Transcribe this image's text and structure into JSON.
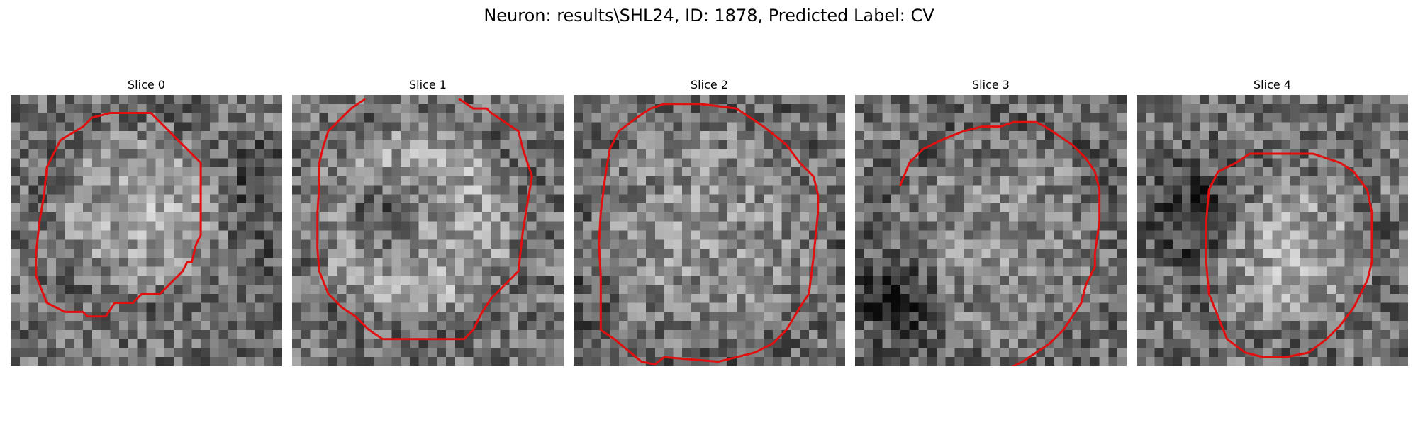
{
  "figure": {
    "title": "Neuron: results\\SHL24, ID: 1878, Predicted Label: CV",
    "colors": {
      "contour": "#e01010",
      "background": "#ffffff"
    },
    "colormap": "gray",
    "panels": [
      {
        "title": "Slice 0",
        "image": "noisy-grayscale-neuron-patch",
        "contour": [
          [
            13.5,
            2
          ],
          [
            0,
            2
          ],
          [
            -2,
            2
          ],
          [
            -4,
            2
          ],
          [
            -6,
            2
          ],
          [
            -8,
            2
          ],
          [
            -10,
            2
          ],
          [
            -13,
            -2
          ],
          [
            -15,
            -2
          ],
          [
            -20,
            -7
          ],
          [
            -20,
            -10
          ],
          [
            -23,
            -13
          ],
          [
            -26,
            -13
          ],
          [
            -26,
            -21
          ],
          [
            -27,
            -21
          ],
          [
            -27,
            -28
          ],
          [
            -26,
            -28
          ],
          [
            -26,
            -30
          ],
          [
            -26,
            -32
          ],
          [
            -25,
            -33
          ],
          [
            -24,
            -33
          ],
          [
            -22,
            -35
          ],
          [
            -18,
            -35
          ],
          [
            -13,
            -31
          ],
          [
            -11,
            -29
          ],
          [
            -9,
            -29
          ],
          [
            -7,
            -27
          ],
          [
            -1,
            -27
          ],
          [
            4,
            -24
          ],
          [
            6,
            -22
          ],
          [
            8,
            -22
          ],
          [
            10,
            -20
          ],
          [
            12,
            -15
          ],
          [
            12,
            -13
          ],
          [
            13.5,
            -11
          ]
        ]
      },
      {
        "title": "Slice 1",
        "image": "noisy-grayscale-neuron-patch",
        "contour": []
      },
      {
        "title": "Slice 2",
        "image": "noisy-grayscale-neuron-patch",
        "contour": []
      },
      {
        "title": "Slice 3",
        "image": "noisy-grayscale-neuron-patch",
        "contour": []
      },
      {
        "title": "Slice 4",
        "image": "noisy-grayscale-neuron-patch",
        "contour": []
      }
    ]
  }
}
